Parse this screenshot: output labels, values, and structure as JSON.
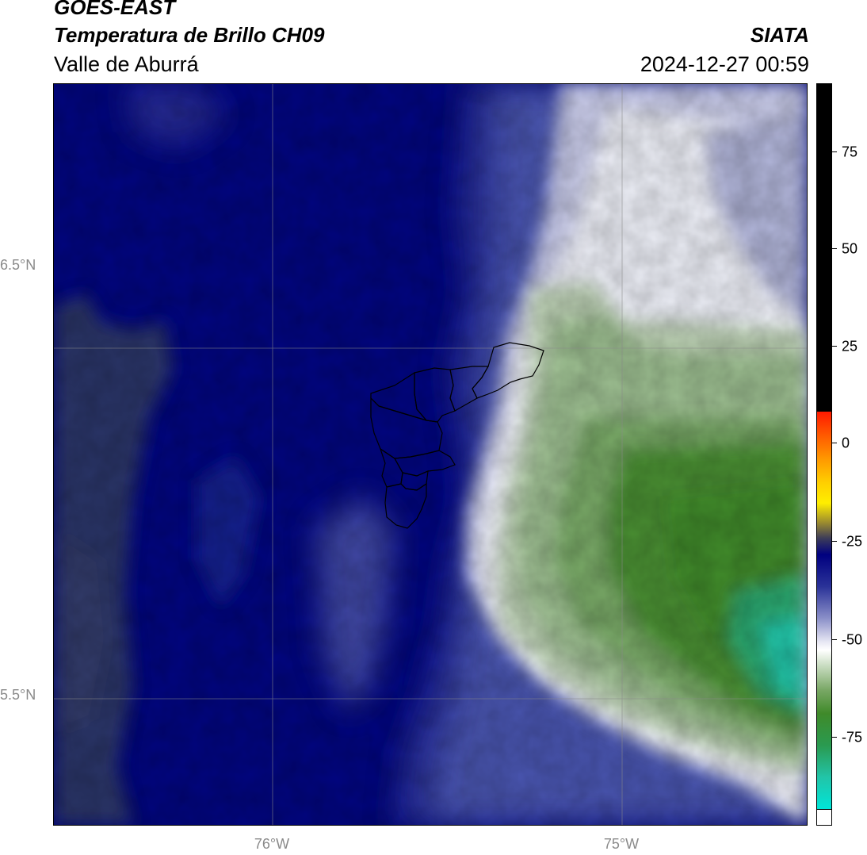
{
  "header": {
    "satellite": "GOES-EAST",
    "product": "Temperatura de Brillo CH09",
    "region": "Valle de Aburrá",
    "organization": "SIATA",
    "timestamp": "2024-12-27 00:59"
  },
  "map": {
    "lat_labels": [
      {
        "text": "6.5°N",
        "value": 6.5
      },
      {
        "text": "5.5°N",
        "value": 5.5
      }
    ],
    "lon_labels": [
      {
        "text": "76°W",
        "value": -76
      },
      {
        "text": "75°W",
        "value": -75
      }
    ],
    "overlay": "municipal boundaries (Valle de Aburrá)",
    "field": "brightness temperature",
    "dominant_features": {
      "west": "cold-free warm region (dark blue, about -25 to -30)",
      "east": "convective cloud region (green, about -60 to -80)"
    }
  },
  "colorbar": {
    "labels": [
      {
        "text": "75",
        "value": 75
      },
      {
        "text": "50",
        "value": 50
      },
      {
        "text": "25",
        "value": 25
      },
      {
        "text": "0",
        "value": 0
      },
      {
        "text": "-25",
        "value": -25
      },
      {
        "text": "-50",
        "value": -50
      },
      {
        "text": "-75",
        "value": -75
      }
    ],
    "range": [
      -93,
      91
    ],
    "colors": {
      "warm_black": "#000000",
      "red": "#ff1a00",
      "orange": "#ff9900",
      "yellow": "#ffee00",
      "olive": "#9a8a30",
      "navy": "#000080",
      "periwinkle": "#8a8fc8",
      "white": "#ffffff",
      "green": "#3f8a2a",
      "teal": "#22c4a8",
      "cyan": "#00e5d8"
    }
  }
}
